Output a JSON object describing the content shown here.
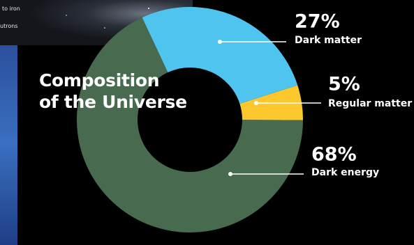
{
  "chart_data": {
    "type": "pie",
    "title": "Composition\nof the Universe",
    "categories": [
      "Dark matter",
      "Regular matter",
      "Dark energy"
    ],
    "values": [
      27,
      5,
      68
    ],
    "value_labels": [
      "27%",
      "5%",
      "68%"
    ],
    "colors": [
      "#4fc4ee",
      "#fcc82e",
      "#486b4f"
    ]
  },
  "inset": {
    "lines": [
      "to iron",
      "utrons"
    ]
  }
}
